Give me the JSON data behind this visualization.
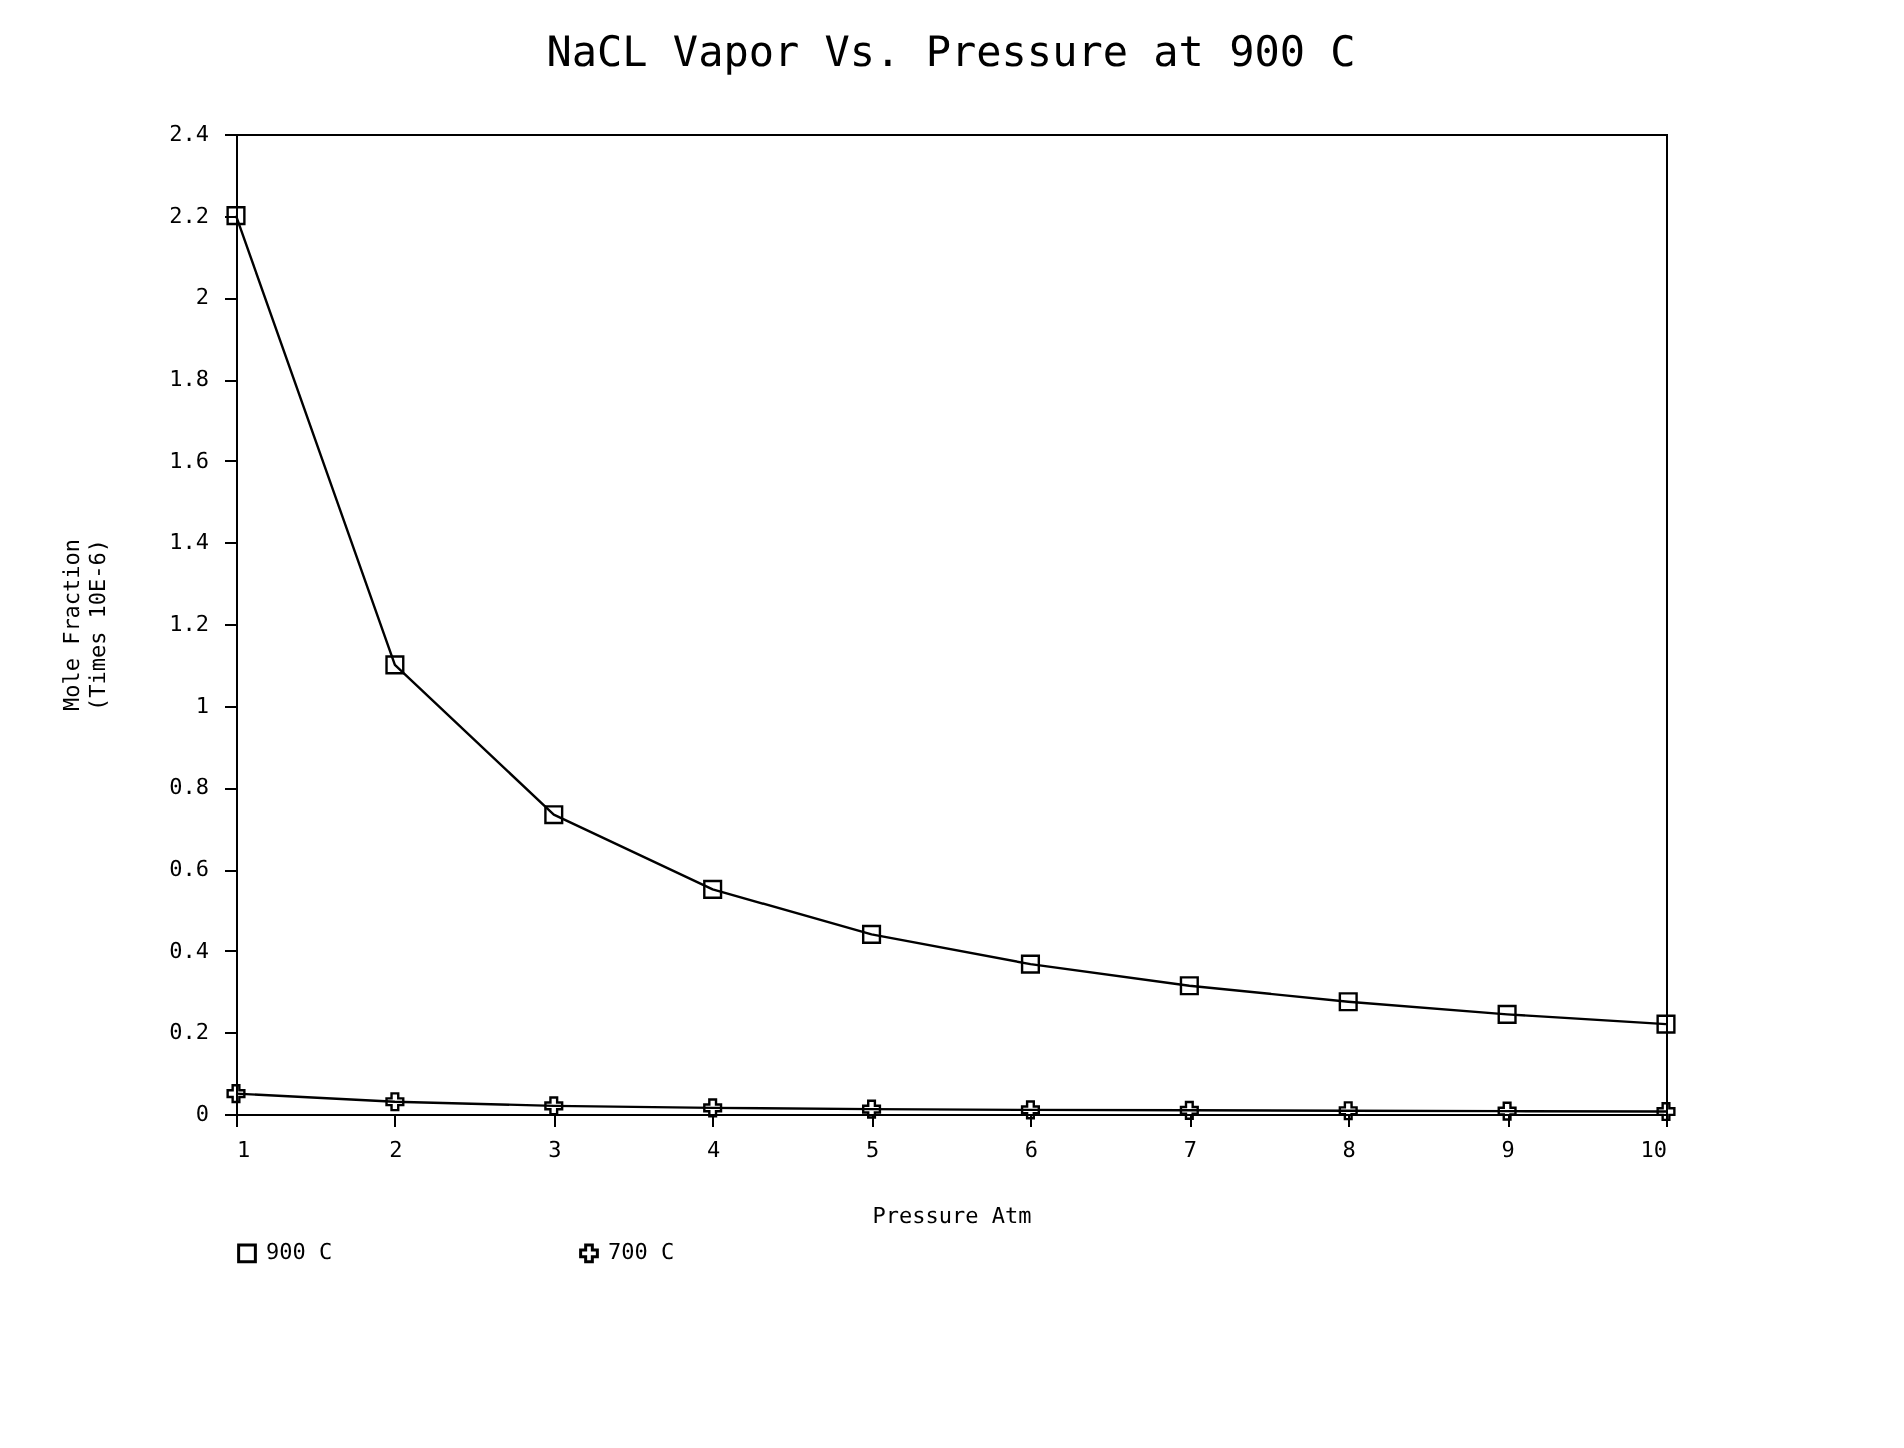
{
  "chart_data": {
    "type": "line",
    "title": "NaCL Vapor Vs. Pressure at 900 C",
    "xlabel": "Pressure  Atm",
    "ylabel": "Mole Fraction\n(Times 10E-6)",
    "x": [
      1,
      2,
      3,
      4,
      5,
      6,
      7,
      8,
      9,
      10
    ],
    "series": [
      {
        "name": "900 C",
        "color": "#000000",
        "marker": "square",
        "values": [
          2.2,
          1.1,
          0.733,
          0.55,
          0.44,
          0.367,
          0.314,
          0.275,
          0.244,
          0.22
        ]
      },
      {
        "name": "700 C",
        "color": "#000000",
        "marker": "cross",
        "values": [
          0.05,
          0.03,
          0.02,
          0.015,
          0.012,
          0.01,
          0.009,
          0.008,
          0.007,
          0.006
        ]
      }
    ],
    "xlim": [
      1,
      10
    ],
    "xticks": [
      1,
      2,
      3,
      4,
      5,
      6,
      7,
      8,
      9,
      10
    ],
    "ylim": [
      0,
      2.4
    ],
    "yticks": [
      0,
      0.2,
      0.4,
      0.6,
      0.8,
      1,
      1.2,
      1.4,
      1.6,
      1.8,
      2,
      2.2,
      2.4
    ],
    "grid": false,
    "legend": "bottom",
    "line_style": "solid"
  }
}
